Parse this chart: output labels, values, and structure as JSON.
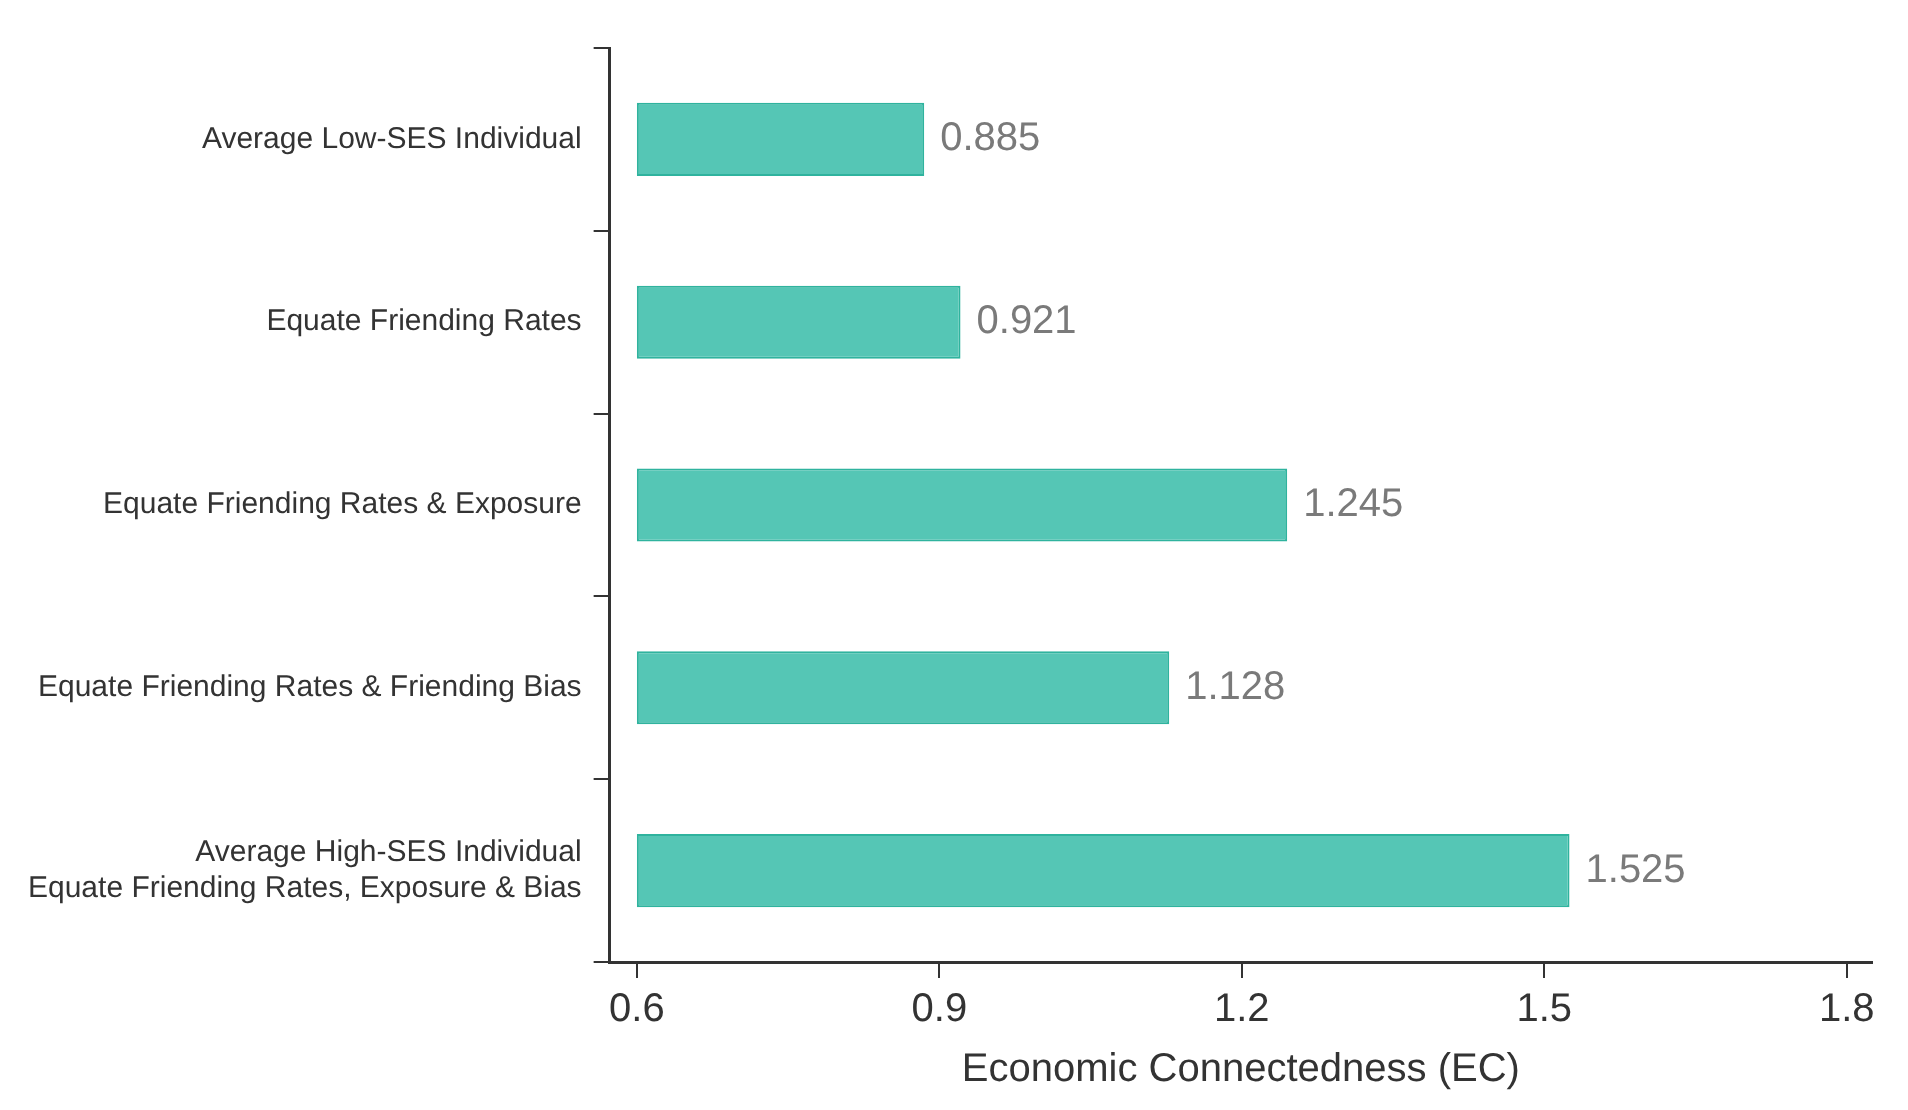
{
  "chart_data": {
    "type": "bar",
    "orientation": "horizontal",
    "xlabel": "Economic Connectedness (EC)",
    "categories": [
      "Average Low-SES Individual",
      "Equate Friending Rates",
      "Equate Friending Rates & Exposure",
      "Equate Friending Rates & Friending Bias",
      "Average High-SES Individual\nEquate Friending Rates, Exposure & Bias"
    ],
    "base": [
      0.6,
      0.6,
      0.6,
      0.6,
      0.6
    ],
    "values": [
      0.285,
      0.321,
      0.645,
      0.528,
      0.925
    ],
    "value_labels": [
      "0.885",
      "0.921",
      "1.245",
      "1.128",
      "1.525"
    ],
    "color": "#55c6b5",
    "xlim": [
      0.573,
      1.825
    ],
    "xticks": [
      0.6,
      0.9,
      1.2,
      1.5,
      1.8
    ],
    "grid": false,
    "legend": false
  }
}
